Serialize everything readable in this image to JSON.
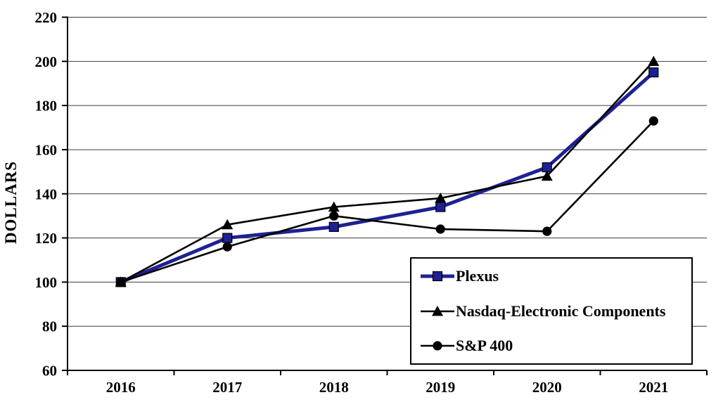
{
  "chart_data": {
    "type": "line",
    "title": "",
    "xlabel": "",
    "ylabel": "DOLLARS",
    "categories": [
      "2016",
      "2017",
      "2018",
      "2019",
      "2020",
      "2021"
    ],
    "ylim": [
      60,
      220
    ],
    "yticks": [
      60,
      80,
      100,
      120,
      140,
      160,
      180,
      200,
      220
    ],
    "grid": "horizontal",
    "legend_position": "inside-bottom-right",
    "series": [
      {
        "name": "Plexus",
        "marker": "square",
        "color": "#1E2193",
        "line_width": 5,
        "values": [
          100,
          120,
          125,
          134,
          152,
          195
        ]
      },
      {
        "name": "Nasdaq-Electronic Components",
        "marker": "triangle",
        "color": "#000000",
        "line_width": 2.6,
        "values": [
          100,
          126,
          134,
          138,
          148,
          200
        ]
      },
      {
        "name": "S&P 400",
        "marker": "circle",
        "color": "#000000",
        "line_width": 2.6,
        "values": [
          100,
          116,
          130,
          124,
          123,
          173
        ]
      }
    ]
  },
  "colors": {
    "background": "#FFFFFF",
    "axis": "#000000",
    "grid": "#3C3C3C",
    "text": "#000000"
  }
}
